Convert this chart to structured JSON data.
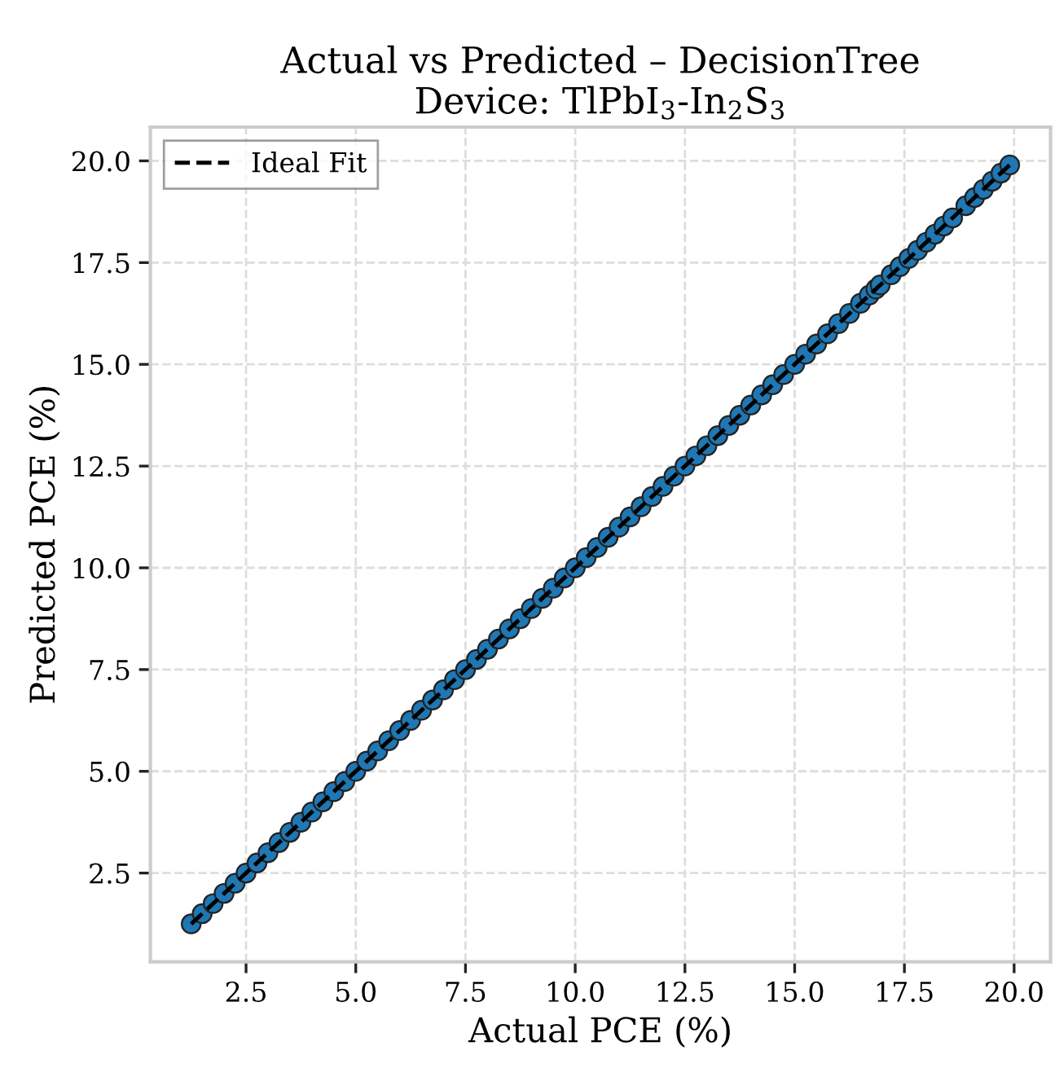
{
  "chart_data": {
    "type": "scatter",
    "title": "Actual vs Predicted – DecisionTree\nDevice: TlPbI$_{3}$-In$_{2}$S$_{3}$",
    "xlabel": "Actual PCE (%)",
    "ylabel": "Predicted PCE (%)",
    "xlim": [
      0.32,
      20.83
    ],
    "ylim": [
      0.32,
      20.83
    ],
    "xticks": [
      {
        "value": 2.5,
        "label": "2.5"
      },
      {
        "value": 5,
        "label": "5.0"
      },
      {
        "value": 7.5,
        "label": "7.5"
      },
      {
        "value": 10,
        "label": "10.0"
      },
      {
        "value": 12.5,
        "label": "12.5"
      },
      {
        "value": 15,
        "label": "15.0"
      },
      {
        "value": 17.5,
        "label": "17.5"
      },
      {
        "value": 20,
        "label": "20.0"
      }
    ],
    "yticks": [
      {
        "value": 2.5,
        "label": "2.5"
      },
      {
        "value": 5,
        "label": "5.0"
      },
      {
        "value": 7.5,
        "label": "7.5"
      },
      {
        "value": 10,
        "label": "10.0"
      },
      {
        "value": 12.5,
        "label": "12.5"
      },
      {
        "value": 15,
        "label": "15.0"
      },
      {
        "value": 17.5,
        "label": "17.5"
      },
      {
        "value": 20,
        "label": "20.0"
      }
    ],
    "grid": true,
    "legend": "top left",
    "marker": "circle",
    "series": [
      {
        "color": "#1f77b4",
        "x": [
          1.25,
          1.5,
          1.75,
          2.0,
          2.25,
          2.5,
          2.75,
          3.0,
          3.25,
          3.5,
          3.75,
          4.0,
          4.25,
          4.5,
          4.75,
          5.0,
          5.25,
          5.5,
          5.75,
          6.0,
          6.25,
          6.5,
          6.75,
          7.0,
          7.25,
          7.5,
          7.75,
          8.0,
          8.25,
          8.5,
          8.75,
          9.0,
          9.25,
          9.5,
          9.75,
          10.0,
          10.25,
          10.5,
          10.75,
          11.0,
          11.25,
          11.5,
          11.75,
          12.0,
          12.25,
          12.5,
          12.75,
          13.0,
          13.25,
          13.5,
          13.75,
          14.0,
          14.25,
          14.5,
          14.75,
          15.0,
          15.25,
          15.5,
          15.75,
          16.0,
          16.25,
          16.5,
          16.7,
          16.85,
          16.95,
          17.2,
          17.4,
          17.6,
          17.8,
          18.0,
          18.2,
          18.4,
          18.6,
          18.9,
          19.1,
          19.3,
          19.5,
          19.7,
          19.9
        ],
        "values": [
          1.25,
          1.5,
          1.75,
          2.0,
          2.25,
          2.5,
          2.75,
          3.0,
          3.25,
          3.5,
          3.75,
          4.0,
          4.25,
          4.5,
          4.75,
          5.0,
          5.25,
          5.5,
          5.75,
          6.0,
          6.25,
          6.5,
          6.75,
          7.0,
          7.25,
          7.5,
          7.75,
          8.0,
          8.25,
          8.5,
          8.75,
          9.0,
          9.25,
          9.5,
          9.75,
          10.0,
          10.25,
          10.5,
          10.75,
          11.0,
          11.25,
          11.5,
          11.75,
          12.0,
          12.25,
          12.5,
          12.75,
          13.0,
          13.25,
          13.5,
          13.75,
          14.0,
          14.25,
          14.5,
          14.75,
          15.0,
          15.25,
          15.5,
          15.75,
          16.0,
          16.25,
          16.5,
          16.7,
          16.85,
          16.95,
          17.2,
          17.4,
          17.6,
          17.8,
          18.0,
          18.2,
          18.4,
          18.6,
          18.9,
          19.1,
          19.3,
          19.5,
          19.7,
          19.9
        ]
      },
      {
        "type": "line",
        "name": "Ideal Fit",
        "color": "#000000",
        "line_style": "dashed",
        "marker": "none",
        "x": [
          1.25,
          19.9
        ],
        "values": [
          1.25,
          19.9
        ]
      }
    ]
  }
}
